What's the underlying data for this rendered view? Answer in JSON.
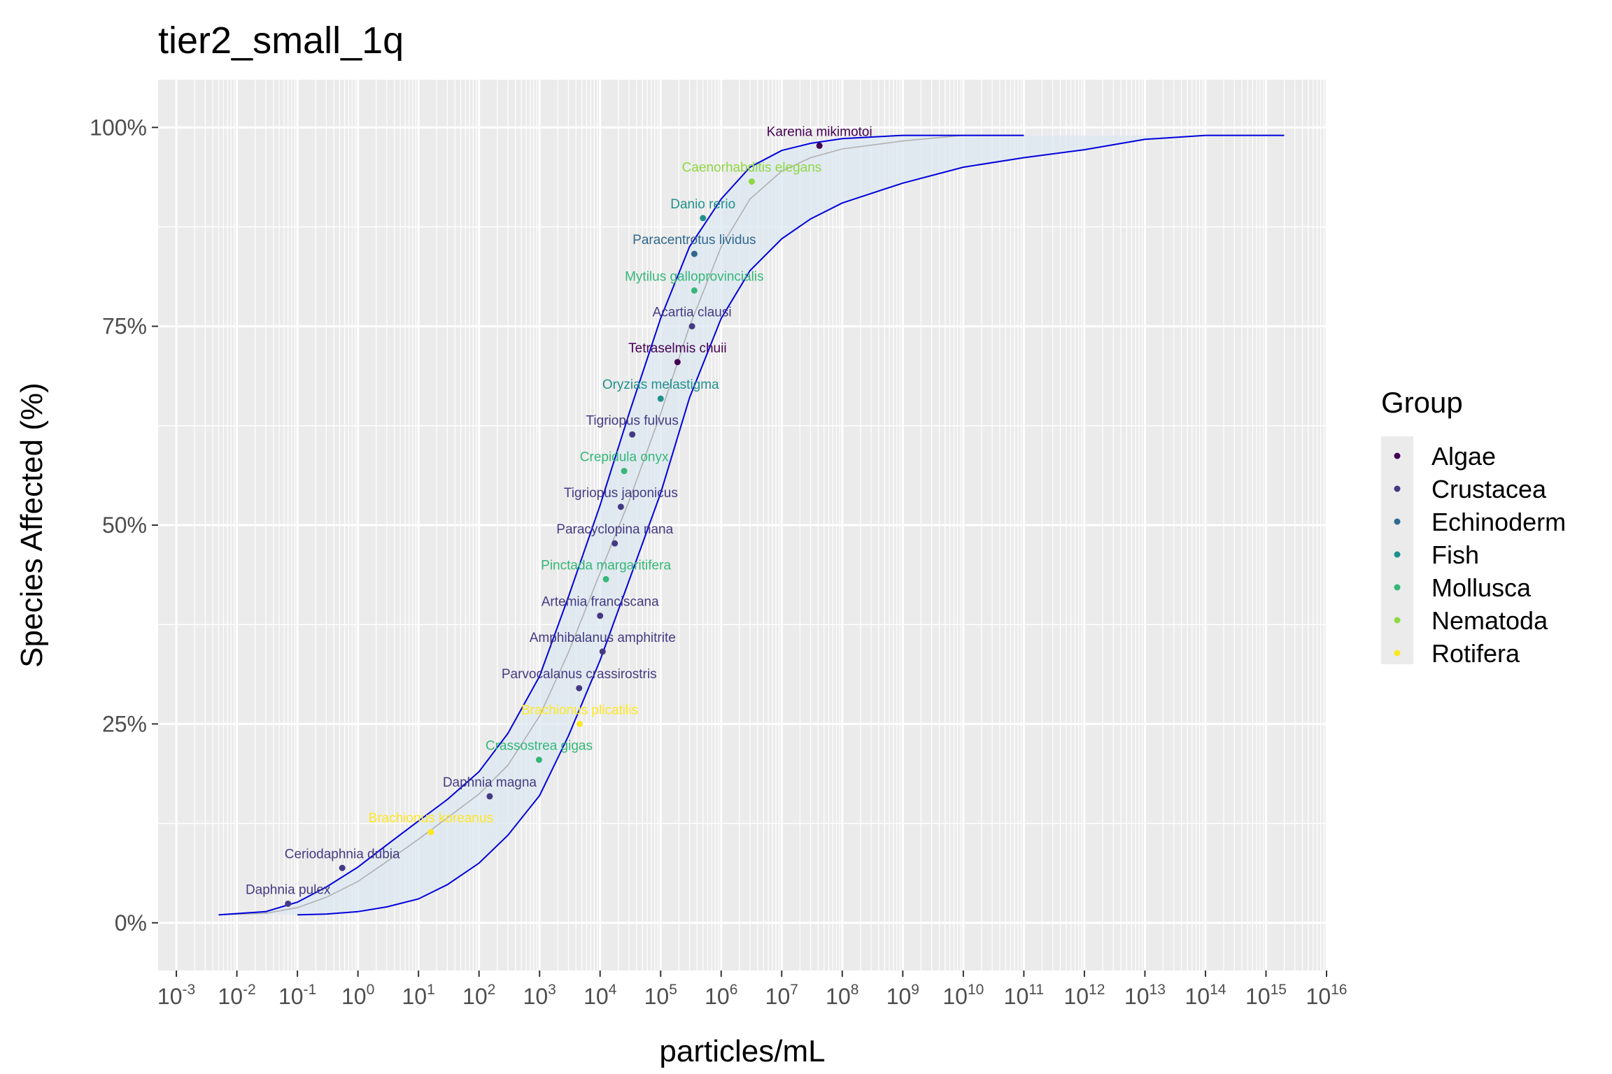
{
  "chart_data": {
    "type": "scatter",
    "title": "tier2_small_1q",
    "xlabel": "particles/mL",
    "ylabel": "Species Affected (%)",
    "x_scale": "log10",
    "xlim": [
      0.0005,
      1e+16
    ],
    "ylim": [
      -0.06,
      1.06
    ],
    "x_ticks": [
      {
        "base": "10",
        "exp": "-3"
      },
      {
        "base": "10",
        "exp": "-2"
      },
      {
        "base": "10",
        "exp": "-1"
      },
      {
        "base": "10",
        "exp": "0"
      },
      {
        "base": "10",
        "exp": "1"
      },
      {
        "base": "10",
        "exp": "2"
      },
      {
        "base": "10",
        "exp": "3"
      },
      {
        "base": "10",
        "exp": "4"
      },
      {
        "base": "10",
        "exp": "5"
      },
      {
        "base": "10",
        "exp": "6"
      },
      {
        "base": "10",
        "exp": "7"
      },
      {
        "base": "10",
        "exp": "8"
      },
      {
        "base": "10",
        "exp": "9"
      },
      {
        "base": "10",
        "exp": "10"
      },
      {
        "base": "10",
        "exp": "11"
      },
      {
        "base": "10",
        "exp": "12"
      },
      {
        "base": "10",
        "exp": "13"
      },
      {
        "base": "10",
        "exp": "14"
      },
      {
        "base": "10",
        "exp": "15"
      },
      {
        "base": "10",
        "exp": "16"
      }
    ],
    "y_ticks": [
      {
        "value": 0,
        "label": "0%"
      },
      {
        "value": 0.25,
        "label": "25%"
      },
      {
        "value": 0.5,
        "label": "50%"
      },
      {
        "value": 0.75,
        "label": "75%"
      },
      {
        "value": 1,
        "label": "100%"
      }
    ],
    "grid": true,
    "legend": {
      "title": "Group",
      "position": "right",
      "items": [
        {
          "name": "Algae",
          "color": "#440154"
        },
        {
          "name": "Crustacea",
          "color": "#443a83"
        },
        {
          "name": "Echinoderm",
          "color": "#31688e"
        },
        {
          "name": "Fish",
          "color": "#21908d"
        },
        {
          "name": "Mollusca",
          "color": "#35b779"
        },
        {
          "name": "Nematoda",
          "color": "#8fd744"
        },
        {
          "name": "Rotifera",
          "color": "#fde725"
        }
      ]
    },
    "points": [
      {
        "species": "Daphnia pulex",
        "group": "Crustacea",
        "x": 0.07,
        "y": 0.024
      },
      {
        "species": "Ceriodaphnia dubia",
        "group": "Crustacea",
        "x": 0.55,
        "y": 0.069
      },
      {
        "species": "Brachionus koreanus",
        "group": "Rotifera",
        "x": 16,
        "y": 0.114
      },
      {
        "species": "Daphnia magna",
        "group": "Crustacea",
        "x": 150,
        "y": 0.159
      },
      {
        "species": "Crassostrea gigas",
        "group": "Mollusca",
        "x": 980,
        "y": 0.205
      },
      {
        "species": "Brachionus plicatilis",
        "group": "Rotifera",
        "x": 4600,
        "y": 0.25
      },
      {
        "species": "Parvocalanus crassirostris",
        "group": "Crustacea",
        "x": 4500,
        "y": 0.295
      },
      {
        "species": "Amphibalanus amphitrite",
        "group": "Crustacea",
        "x": 11000,
        "y": 0.341
      },
      {
        "species": "Artemia franciscana",
        "group": "Crustacea",
        "x": 10000,
        "y": 0.386
      },
      {
        "species": "Pinctada margaritifera",
        "group": "Mollusca",
        "x": 12500,
        "y": 0.432
      },
      {
        "species": "Paracyclopina nana",
        "group": "Crustacea",
        "x": 17500,
        "y": 0.477
      },
      {
        "species": "Tigriopus japonicus",
        "group": "Crustacea",
        "x": 22000,
        "y": 0.523
      },
      {
        "species": "Crepidula onyx",
        "group": "Mollusca",
        "x": 25000,
        "y": 0.568
      },
      {
        "species": "Tigriopus fulvus",
        "group": "Crustacea",
        "x": 34000,
        "y": 0.614
      },
      {
        "species": "Oryzias melastigma",
        "group": "Fish",
        "x": 100000,
        "y": 0.659
      },
      {
        "species": "Tetraselmis chuii",
        "group": "Algae",
        "x": 190000,
        "y": 0.705
      },
      {
        "species": "Acartia clausi",
        "group": "Crustacea",
        "x": 330000,
        "y": 0.75
      },
      {
        "species": "Mytilus galloprovincialis",
        "group": "Mollusca",
        "x": 360000,
        "y": 0.795
      },
      {
        "species": "Paracentrotus lividus",
        "group": "Echinoderm",
        "x": 360000,
        "y": 0.841
      },
      {
        "species": "Danio rerio",
        "group": "Fish",
        "x": 500000,
        "y": 0.886
      },
      {
        "species": "Caenorhabditis elegans",
        "group": "Nematoda",
        "x": 3200000,
        "y": 0.932
      },
      {
        "species": "Karenia mikimotoi",
        "group": "Algae",
        "x": 42000000,
        "y": 0.977
      }
    ],
    "fit": {
      "line": [
        [
          0.005,
          0.01
        ],
        [
          0.03,
          0.012
        ],
        [
          0.1,
          0.019
        ],
        [
          0.3,
          0.032
        ],
        [
          1,
          0.052
        ],
        [
          3,
          0.077
        ],
        [
          10,
          0.105
        ],
        [
          30,
          0.132
        ],
        [
          100,
          0.162
        ],
        [
          300,
          0.198
        ],
        [
          1000,
          0.26
        ],
        [
          3000,
          0.34
        ],
        [
          10000,
          0.44
        ],
        [
          30000,
          0.53
        ],
        [
          100000,
          0.64
        ],
        [
          300000,
          0.75
        ],
        [
          1000000,
          0.85
        ],
        [
          3000000,
          0.91
        ],
        [
          10000000,
          0.945
        ],
        [
          30000000,
          0.962
        ],
        [
          100000000,
          0.973
        ],
        [
          1000000000.0,
          0.983
        ],
        [
          10000000000.0,
          0.99
        ],
        [
          100000000000.0,
          0.99
        ]
      ],
      "ci_upper": [
        [
          0.005,
          0.01
        ],
        [
          0.03,
          0.014
        ],
        [
          0.1,
          0.026
        ],
        [
          0.3,
          0.045
        ],
        [
          1,
          0.07
        ],
        [
          3,
          0.098
        ],
        [
          10,
          0.128
        ],
        [
          30,
          0.155
        ],
        [
          100,
          0.19
        ],
        [
          300,
          0.238
        ],
        [
          1000,
          0.31
        ],
        [
          3000,
          0.41
        ],
        [
          10000,
          0.525
        ],
        [
          30000,
          0.64
        ],
        [
          100000,
          0.76
        ],
        [
          300000,
          0.85
        ],
        [
          1000000,
          0.91
        ],
        [
          3000000,
          0.95
        ],
        [
          10000000,
          0.971
        ],
        [
          30000000,
          0.98
        ],
        [
          100000000,
          0.986
        ],
        [
          1000000000.0,
          0.99
        ],
        [
          10000000000.0,
          0.99
        ],
        [
          100000000000.0,
          0.99
        ]
      ],
      "ci_lower": [
        [
          0.1,
          0.01
        ],
        [
          0.3,
          0.011
        ],
        [
          1,
          0.014
        ],
        [
          3,
          0.02
        ],
        [
          10,
          0.03
        ],
        [
          30,
          0.048
        ],
        [
          100,
          0.075
        ],
        [
          300,
          0.11
        ],
        [
          1000,
          0.16
        ],
        [
          3000,
          0.235
        ],
        [
          10000,
          0.33
        ],
        [
          30000,
          0.43
        ],
        [
          100000,
          0.54
        ],
        [
          300000,
          0.66
        ],
        [
          1000000,
          0.76
        ],
        [
          3000000,
          0.82
        ],
        [
          10000000,
          0.86
        ],
        [
          30000000,
          0.885
        ],
        [
          100000000,
          0.905
        ],
        [
          1000000000.0,
          0.93
        ],
        [
          10000000000.0,
          0.95
        ],
        [
          100000000000.0,
          0.962
        ],
        [
          1000000000000.0,
          0.972
        ],
        [
          10000000000000.0,
          0.985
        ],
        [
          100000000000000.0,
          0.99
        ],
        [
          1000000000000000.0,
          0.99
        ],
        [
          2000000000000000.0,
          0.99
        ]
      ]
    }
  }
}
